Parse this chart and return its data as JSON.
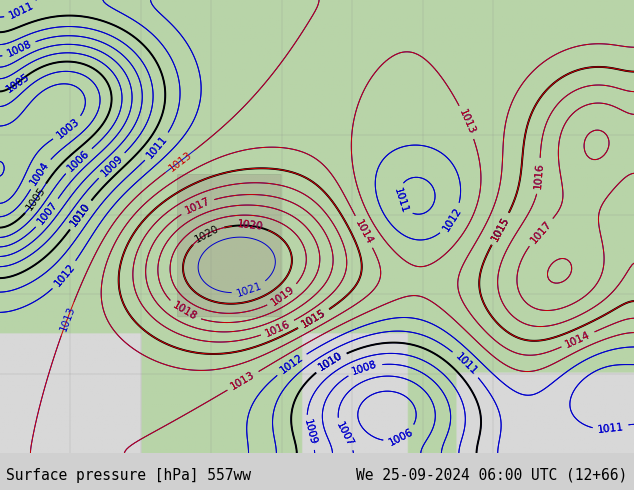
{
  "title_left": "Surface pressure [hPa] 557ww",
  "title_right": "We 25-09-2024 06:00 UTC (12+66)",
  "title_fontsize": 10.5,
  "title_color": "#000000",
  "background_map_color": "#b8d4a8",
  "background_sea_color": "#d8d8d8",
  "fig_bg_color": "#d0d0d0",
  "bottom_bar_color": "#d0d0d0",
  "contour_blue_color": "#0000cc",
  "contour_red_color": "#cc0000",
  "contour_black_color": "#000000",
  "contour_linewidth_thin": 0.7,
  "contour_linewidth_thick": 1.4,
  "label_fontsize": 7.5
}
